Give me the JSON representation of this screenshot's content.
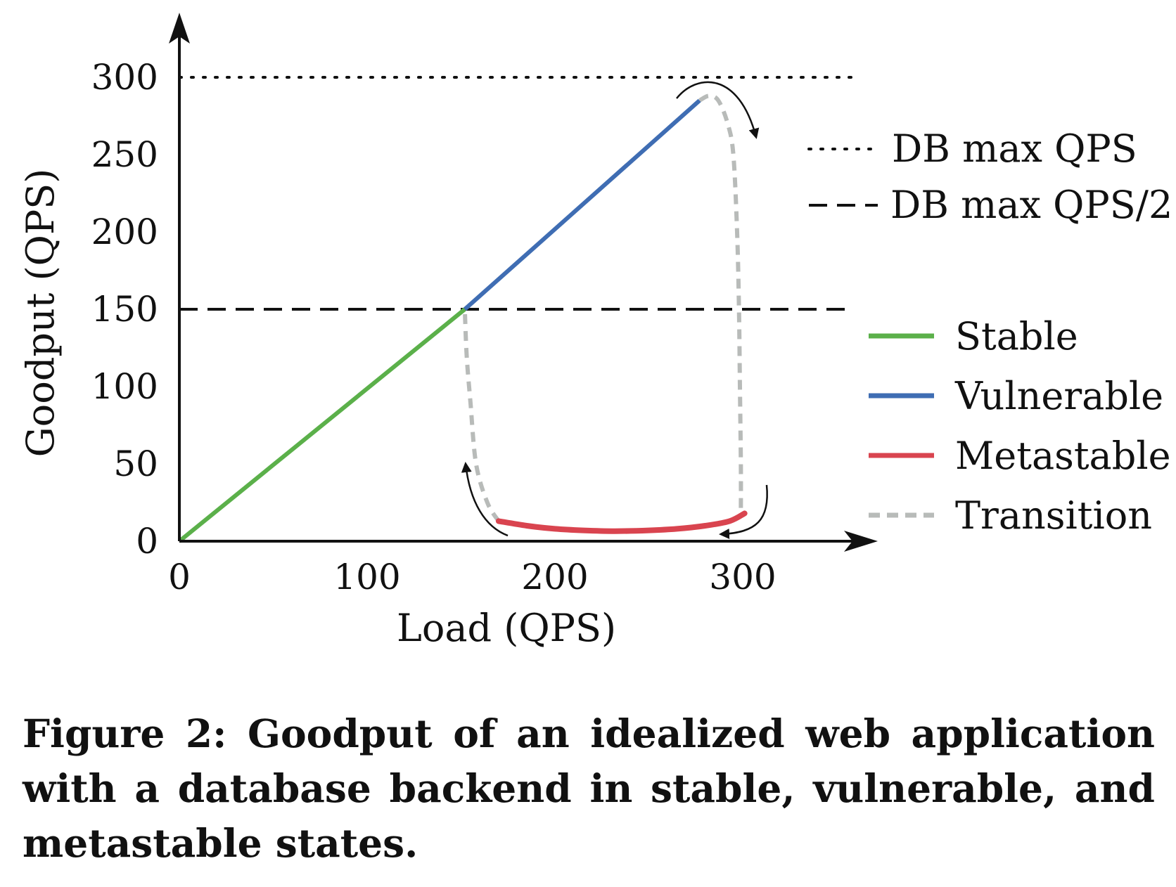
{
  "caption": "Figure 2: Goodput of an idealized web application with a database backend in stable, vulnerable, and metastable states.",
  "chart_data": {
    "type": "line",
    "xlabel": "Load (QPS)",
    "ylabel": "Goodput (QPS)",
    "xlim": [
      0,
      370
    ],
    "ylim": [
      0,
      300
    ],
    "x_ticks": [
      "0",
      "100",
      "200",
      "300"
    ],
    "y_ticks": [
      "0",
      "50",
      "100",
      "150",
      "200",
      "250",
      "300"
    ],
    "grid": false,
    "reference_lines": [
      {
        "name": "DB max QPS",
        "y": 300,
        "style": "dotted",
        "color": "#111111"
      },
      {
        "name": "DB max QPS/2",
        "y": 150,
        "style": "dashed",
        "color": "#111111"
      }
    ],
    "series": [
      {
        "name": "Stable",
        "color": "#5bb04a",
        "style": "solid",
        "points": [
          [
            0,
            0
          ],
          [
            152,
            150
          ]
        ]
      },
      {
        "name": "Vulnerable",
        "color": "#3f6db3",
        "style": "solid",
        "points": [
          [
            152,
            150
          ],
          [
            277,
            285
          ]
        ]
      },
      {
        "name": "Metastable",
        "color": "#d9444f",
        "style": "solid",
        "points": [
          [
            170,
            13
          ],
          [
            185,
            10
          ],
          [
            200,
            8
          ],
          [
            215,
            7
          ],
          [
            232,
            6.5
          ],
          [
            250,
            7
          ],
          [
            265,
            8
          ],
          [
            280,
            10
          ],
          [
            293,
            13
          ],
          [
            301,
            18
          ]
        ]
      },
      {
        "name": "Transition",
        "color": "#b8bbb9",
        "style": "dashed",
        "points": [
          [
            277,
            285
          ],
          [
            282,
            288
          ],
          [
            287,
            285
          ],
          [
            292,
            270
          ],
          [
            295,
            250
          ],
          [
            297,
            200
          ],
          [
            298,
            150
          ],
          [
            298.5,
            100
          ],
          [
            299,
            50
          ],
          [
            299,
            18
          ]
        ]
      },
      {
        "name": "Transition-return",
        "color": "#b8bbb9",
        "style": "dashed",
        "points": [
          [
            170,
            13
          ],
          [
            164,
            25
          ],
          [
            158,
            50
          ],
          [
            155,
            90
          ],
          [
            153,
            120
          ],
          [
            152,
            150
          ]
        ]
      }
    ],
    "legend": {
      "position": "right",
      "reference_entries": [
        "DB max QPS",
        "DB max QPS/2"
      ],
      "entries": [
        "Stable",
        "Vulnerable",
        "Metastable",
        "Transition"
      ]
    }
  }
}
